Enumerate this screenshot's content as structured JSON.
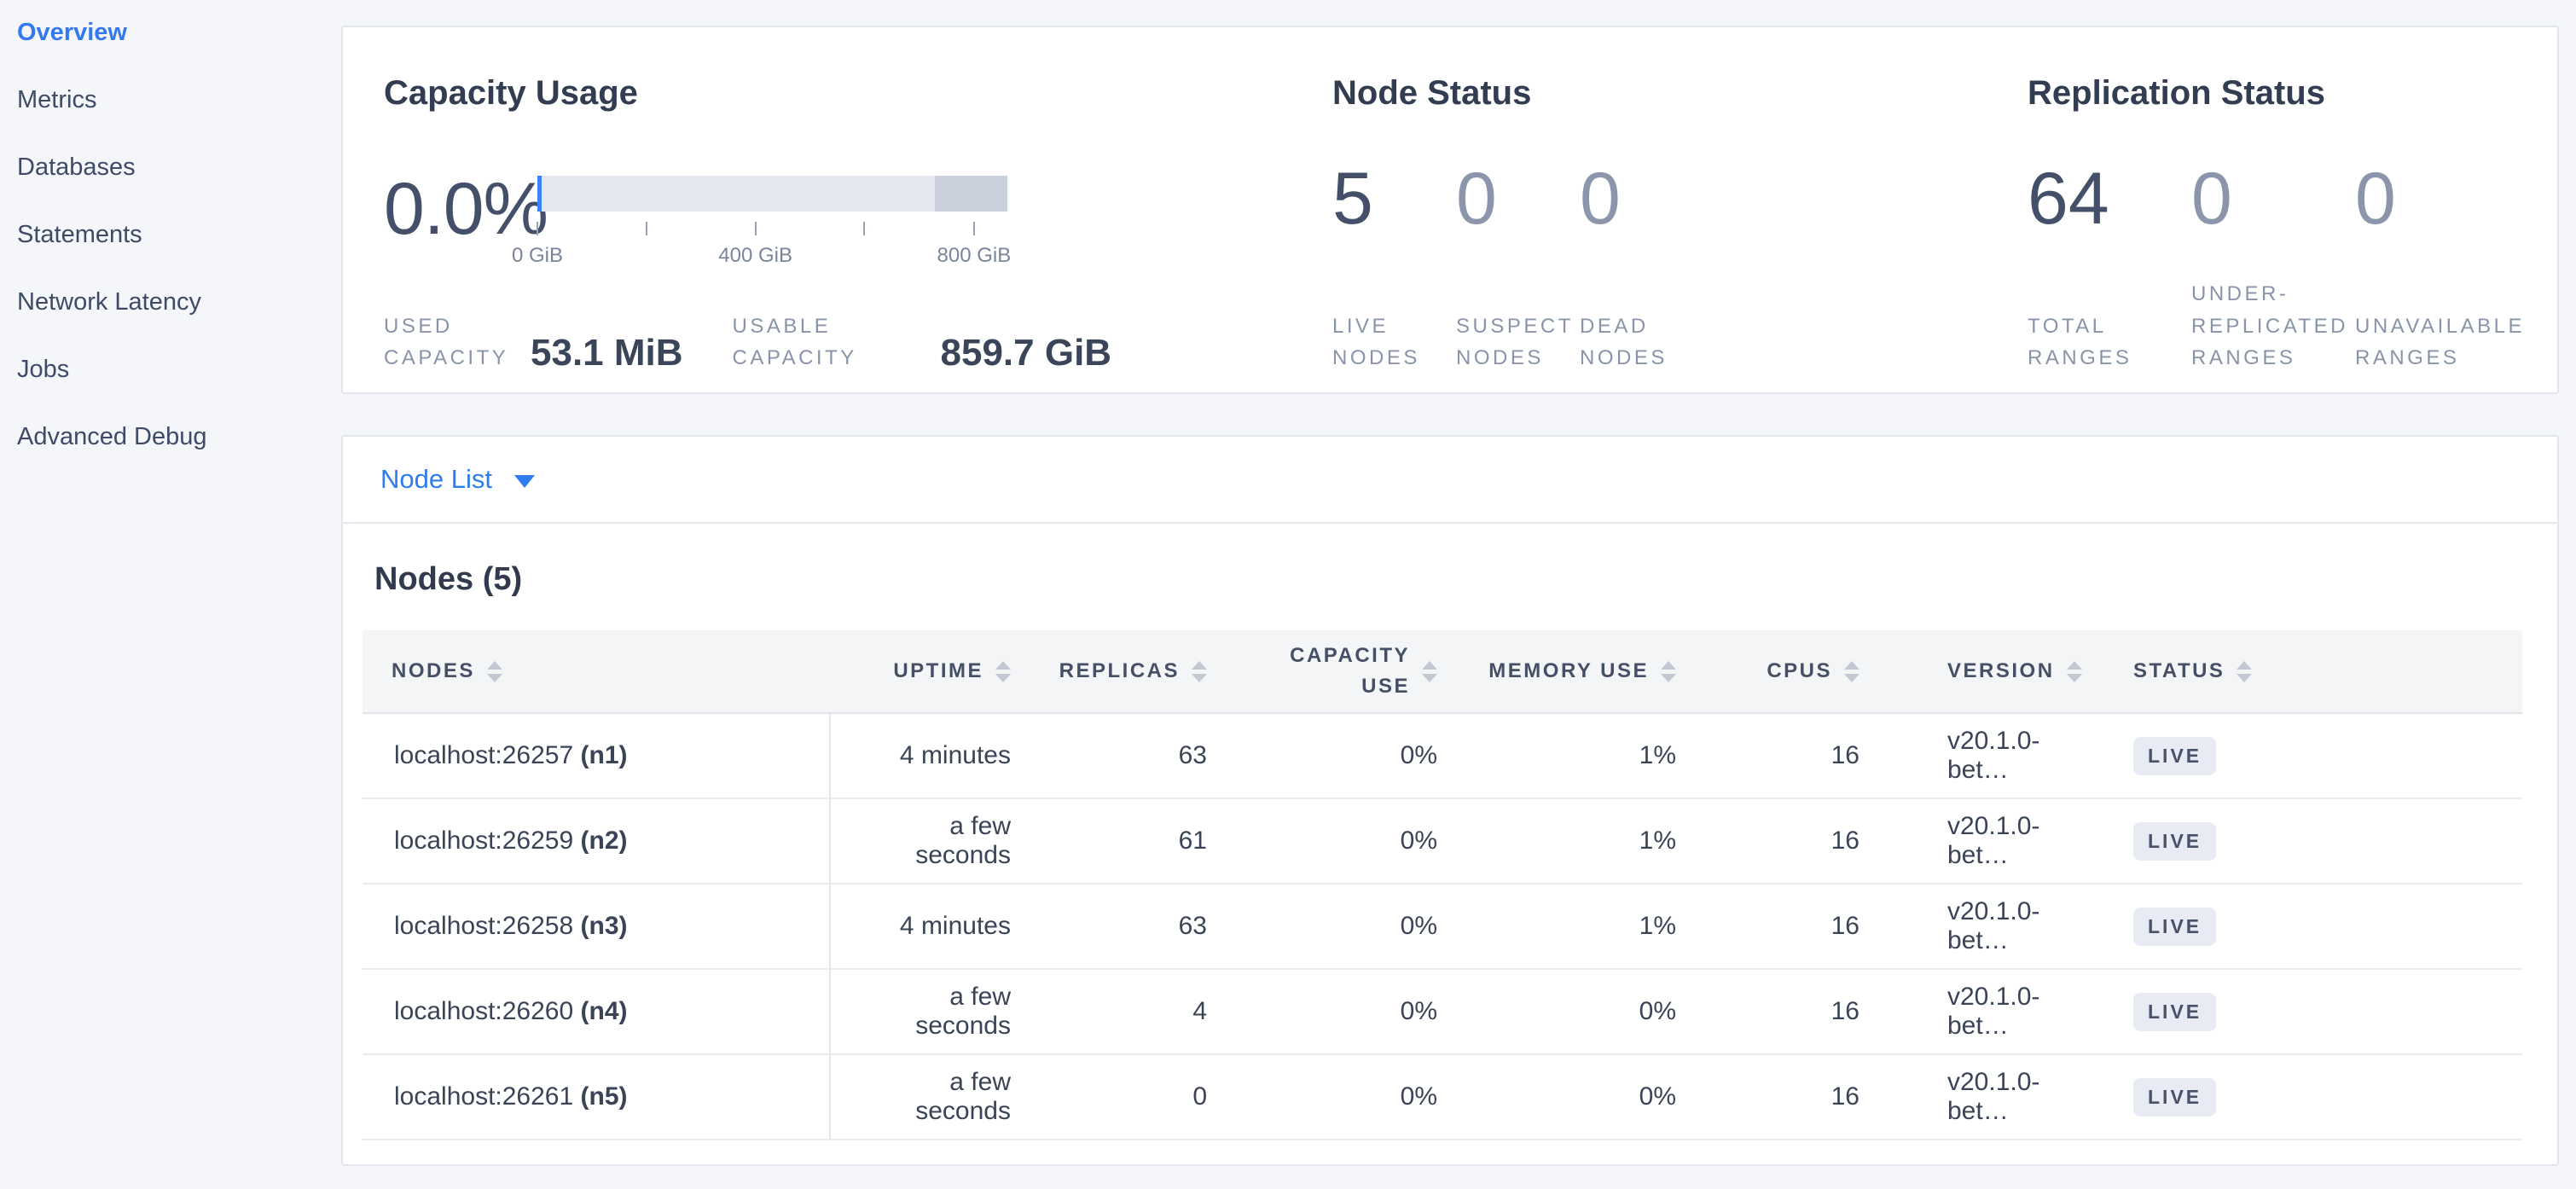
{
  "sidebar": {
    "items": [
      {
        "label": "Overview",
        "active": true
      },
      {
        "label": "Metrics",
        "active": false
      },
      {
        "label": "Databases",
        "active": false
      },
      {
        "label": "Statements",
        "active": false
      },
      {
        "label": "Network Latency",
        "active": false
      },
      {
        "label": "Jobs",
        "active": false
      },
      {
        "label": "Advanced Debug",
        "active": false
      }
    ]
  },
  "capacity_usage": {
    "title": "Capacity Usage",
    "percent": "0.0%",
    "used": {
      "label": "USED\nCAPACITY",
      "value": "53.1 MiB"
    },
    "usable": {
      "label": "USABLE\nCAPACITY",
      "value": "859.7 GiB"
    },
    "chart_data": {
      "type": "bar",
      "title": "Capacity Usage",
      "axis_unit": "GiB",
      "axis_range": [
        0,
        860
      ],
      "ticks": [
        {
          "label": "0 GiB",
          "pos_pct": 0
        },
        {
          "label": "",
          "pos_pct": 23.2
        },
        {
          "label": "400 GiB",
          "pos_pct": 46.4
        },
        {
          "label": "",
          "pos_pct": 69.6
        },
        {
          "label": "800 GiB",
          "pos_pct": 92.9
        }
      ],
      "segments": {
        "usable_pct": 84.6,
        "other_pct": 15.4,
        "used_marker_pct": 0.9
      },
      "colors": {
        "usable": "#e4e7ee",
        "other": "#cad0db",
        "used": "#3b82f6"
      }
    }
  },
  "node_status": {
    "title": "Node Status",
    "stats": [
      {
        "value": "5",
        "label": "LIVE\nNODES",
        "muted": false
      },
      {
        "value": "0",
        "label": "SUSPECT\nNODES",
        "muted": true
      },
      {
        "value": "0",
        "label": "DEAD\nNODES",
        "muted": true
      }
    ]
  },
  "replication_status": {
    "title": "Replication Status",
    "stats": [
      {
        "value": "64",
        "label": "TOTAL\nRANGES",
        "muted": false
      },
      {
        "value": "0",
        "label": "UNDER-\nREPLICATED\nRANGES",
        "muted": true
      },
      {
        "value": "0",
        "label": "UNAVAILABLE\nRANGES",
        "muted": true
      }
    ]
  },
  "node_list": {
    "toggle_label": "Node List",
    "heading": "Nodes (5)",
    "columns": [
      {
        "key": "node",
        "label": "NODES",
        "align": "left"
      },
      {
        "key": "uptime",
        "label": "UPTIME",
        "align": "right"
      },
      {
        "key": "replicas",
        "label": "REPLICAS",
        "align": "right"
      },
      {
        "key": "capacity_use",
        "label": "CAPACITY\nUSE",
        "align": "right"
      },
      {
        "key": "memory_use",
        "label": "MEMORY USE",
        "align": "right"
      },
      {
        "key": "cpus",
        "label": "CPUS",
        "align": "right"
      },
      {
        "key": "version",
        "label": "VERSION",
        "align": "left"
      },
      {
        "key": "status",
        "label": "STATUS",
        "align": "left"
      }
    ],
    "rows": [
      {
        "node": "localhost:26257",
        "name": "(n1)",
        "uptime": "4 minutes",
        "replicas": "63",
        "capacity_use": "0%",
        "memory_use": "1%",
        "cpus": "16",
        "version": "v20.1.0-bet…",
        "status": "LIVE"
      },
      {
        "node": "localhost:26259",
        "name": "(n2)",
        "uptime": "a few seconds",
        "replicas": "61",
        "capacity_use": "0%",
        "memory_use": "1%",
        "cpus": "16",
        "version": "v20.1.0-bet…",
        "status": "LIVE"
      },
      {
        "node": "localhost:26258",
        "name": "(n3)",
        "uptime": "4 minutes",
        "replicas": "63",
        "capacity_use": "0%",
        "memory_use": "1%",
        "cpus": "16",
        "version": "v20.1.0-bet…",
        "status": "LIVE"
      },
      {
        "node": "localhost:26260",
        "name": "(n4)",
        "uptime": "a few seconds",
        "replicas": "4",
        "capacity_use": "0%",
        "memory_use": "0%",
        "cpus": "16",
        "version": "v20.1.0-bet…",
        "status": "LIVE"
      },
      {
        "node": "localhost:26261",
        "name": "(n5)",
        "uptime": "a few seconds",
        "replicas": "0",
        "capacity_use": "0%",
        "memory_use": "0%",
        "cpus": "16",
        "version": "v20.1.0-bet…",
        "status": "LIVE"
      }
    ]
  },
  "colors": {
    "accent_blue": "#337af1",
    "link_blue": "#2e7cf0",
    "badge_bg": "#e8ebf4",
    "badge_text": "#48526b",
    "page_bg": "#f4f6fa"
  }
}
